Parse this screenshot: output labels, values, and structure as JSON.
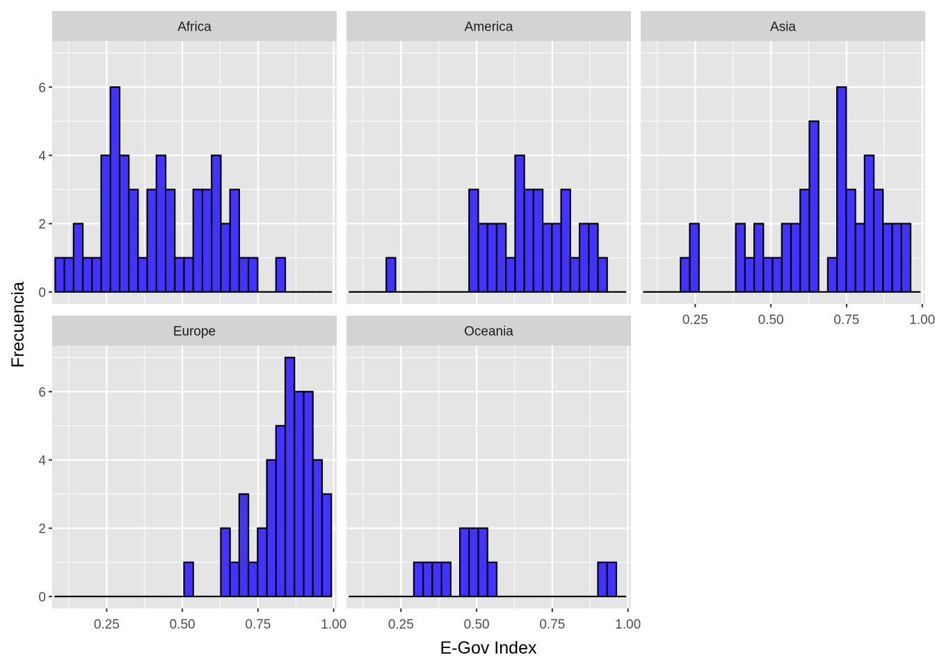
{
  "chart_data": {
    "type": "bar",
    "subtype": "faceted-histogram",
    "xlabel": "E-Gov Index",
    "ylabel": "Frecuencia",
    "xlim": [
      0.07,
      1.01
    ],
    "ylim": [
      -0.35,
      7.35
    ],
    "x_ticks": [
      0.25,
      0.5,
      0.75,
      1.0
    ],
    "x_tick_labels": [
      "0.25",
      "0.50",
      "0.75",
      "1.00"
    ],
    "y_ticks": [
      0,
      2,
      4,
      6
    ],
    "y_tick_labels": [
      "0",
      "2",
      "4",
      "6"
    ],
    "bins": {
      "start": 0.08,
      "width": 0.0304,
      "count": 30
    },
    "grid": true,
    "legend": "none",
    "colors": {
      "bar_fill": "#4433FF",
      "bar_stroke": "#000000",
      "panel_bg": "#E5E5E5",
      "strip_bg": "#D3D3D3",
      "grid": "#FFFFFF"
    },
    "facets": [
      {
        "name": "Africa",
        "values": [
          1,
          1,
          2,
          1,
          1,
          4,
          6,
          4,
          3,
          1,
          3,
          4,
          3,
          1,
          1,
          3,
          3,
          4,
          2,
          3,
          1,
          1,
          0,
          0,
          1,
          0,
          0,
          0,
          0,
          0
        ]
      },
      {
        "name": "America",
        "values": [
          0,
          0,
          0,
          0,
          1,
          0,
          0,
          0,
          0,
          0,
          0,
          0,
          0,
          3,
          2,
          2,
          2,
          1,
          4,
          3,
          3,
          2,
          2,
          3,
          1,
          2,
          2,
          1,
          0,
          0
        ]
      },
      {
        "name": "Asia",
        "values": [
          0,
          0,
          0,
          0,
          1,
          2,
          0,
          0,
          0,
          0,
          2,
          1,
          2,
          1,
          1,
          2,
          2,
          3,
          5,
          0,
          1,
          6,
          3,
          2,
          4,
          3,
          2,
          2,
          2,
          0
        ]
      },
      {
        "name": "Europe",
        "values": [
          0,
          0,
          0,
          0,
          0,
          0,
          0,
          0,
          0,
          0,
          0,
          0,
          0,
          0,
          1,
          0,
          0,
          0,
          2,
          1,
          3,
          1,
          2,
          4,
          5,
          7,
          6,
          6,
          4,
          3
        ]
      },
      {
        "name": "Oceania",
        "values": [
          0,
          0,
          0,
          0,
          0,
          0,
          0,
          1,
          1,
          1,
          1,
          0,
          2,
          2,
          2,
          1,
          0,
          0,
          0,
          0,
          0,
          0,
          0,
          0,
          0,
          0,
          0,
          1,
          1,
          0
        ]
      }
    ]
  }
}
